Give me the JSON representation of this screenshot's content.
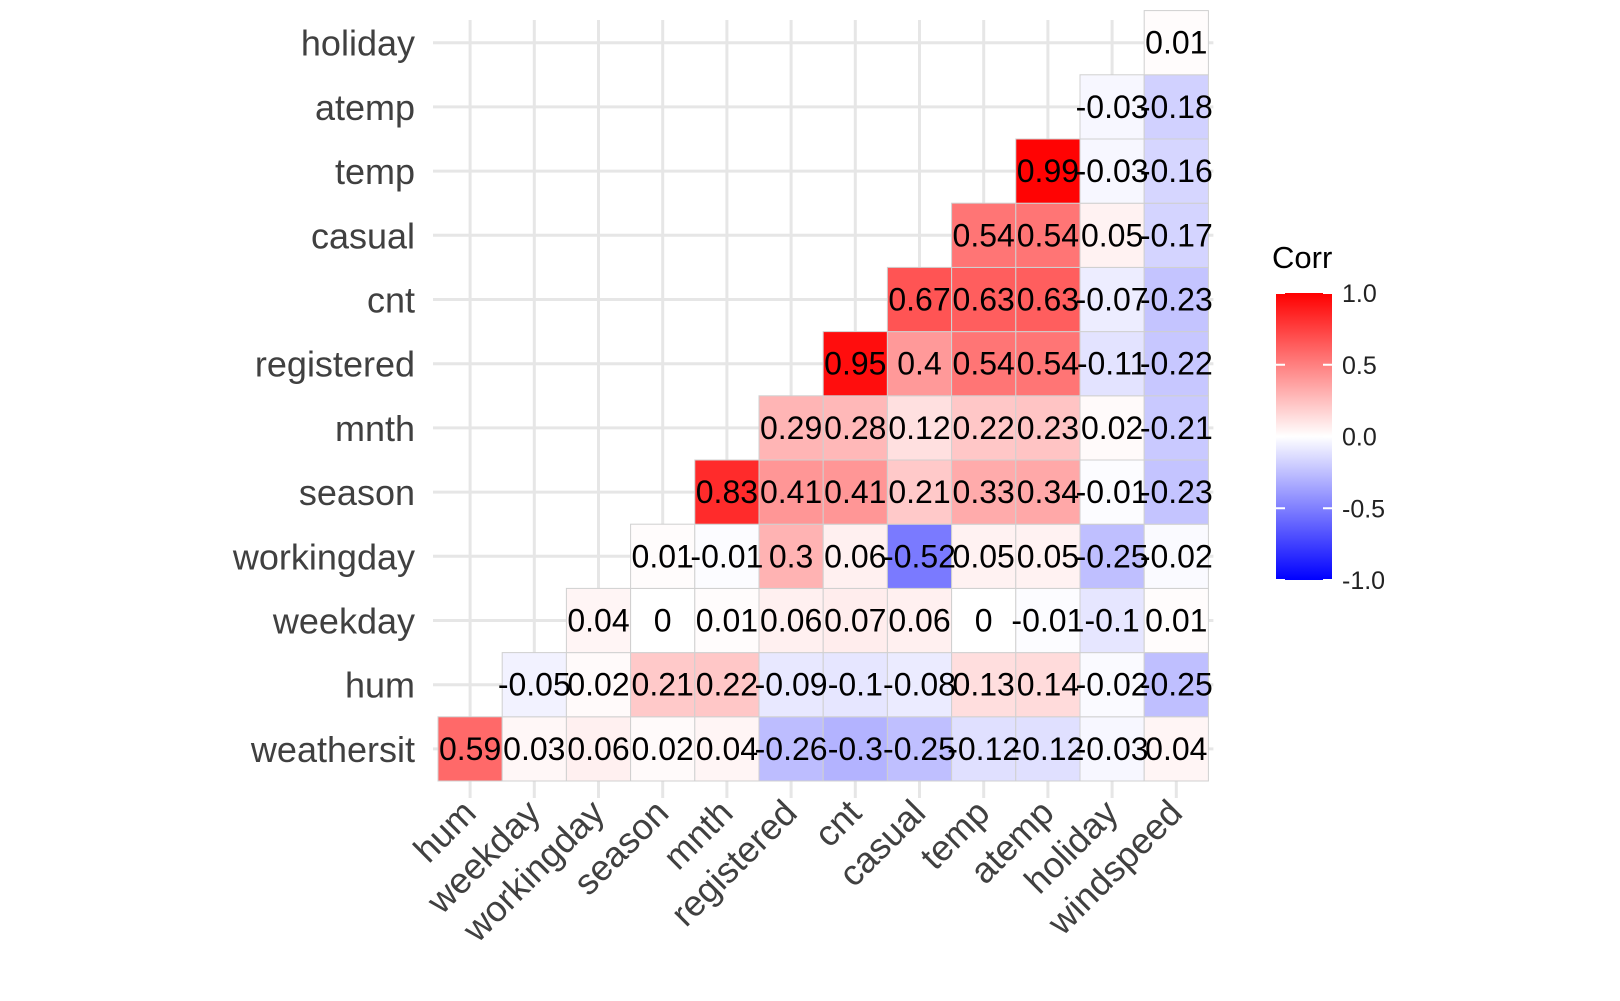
{
  "chart_data": {
    "type": "heatmap",
    "x_categories": [
      "hum",
      "weekday",
      "workingday",
      "season",
      "mnth",
      "registered",
      "cnt",
      "casual",
      "temp",
      "atemp",
      "holiday",
      "windspeed"
    ],
    "y_categories": [
      "weathersit",
      "hum",
      "weekday",
      "workingday",
      "season",
      "mnth",
      "registered",
      "cnt",
      "casual",
      "temp",
      "atemp",
      "holiday"
    ],
    "matrix": [
      [
        "0.59",
        "0.03",
        "0.06",
        "0.02",
        "0.04",
        "-0.26",
        "-0.3",
        "-0.25",
        "-0.12",
        "-0.12",
        "-0.03",
        "0.04"
      ],
      [
        null,
        "-0.05",
        "0.02",
        "0.21",
        "0.22",
        "-0.09",
        "-0.1",
        "-0.08",
        "0.13",
        "0.14",
        "-0.02",
        "-0.25"
      ],
      [
        null,
        null,
        "0.04",
        "0",
        "0.01",
        "0.06",
        "0.07",
        "0.06",
        "0",
        "-0.01",
        "-0.1",
        "0.01"
      ],
      [
        null,
        null,
        null,
        "0.01",
        "-0.01",
        "0.3",
        "0.06",
        "-0.52",
        "0.05",
        "0.05",
        "-0.25",
        "-0.02"
      ],
      [
        null,
        null,
        null,
        null,
        "0.83",
        "0.41",
        "0.41",
        "0.21",
        "0.33",
        "0.34",
        "-0.01",
        "-0.23"
      ],
      [
        null,
        null,
        null,
        null,
        null,
        "0.29",
        "0.28",
        "0.12",
        "0.22",
        "0.23",
        "0.02",
        "-0.21"
      ],
      [
        null,
        null,
        null,
        null,
        null,
        null,
        "0.95",
        "0.4",
        "0.54",
        "0.54",
        "-0.11",
        "-0.22"
      ],
      [
        null,
        null,
        null,
        null,
        null,
        null,
        null,
        "0.67",
        "0.63",
        "0.63",
        "-0.07",
        "-0.23"
      ],
      [
        null,
        null,
        null,
        null,
        null,
        null,
        null,
        null,
        "0.54",
        "0.54",
        "0.05",
        "-0.17"
      ],
      [
        null,
        null,
        null,
        null,
        null,
        null,
        null,
        null,
        null,
        "0.99",
        "-0.03",
        "-0.16"
      ],
      [
        null,
        null,
        null,
        null,
        null,
        null,
        null,
        null,
        null,
        null,
        "-0.03",
        "-0.18"
      ],
      [
        null,
        null,
        null,
        null,
        null,
        null,
        null,
        null,
        null,
        null,
        null,
        "0.01"
      ]
    ],
    "colorscale": {
      "low": "#0000ff",
      "mid": "#ffffff",
      "high": "#ff0000",
      "limits": [
        -1,
        1
      ]
    },
    "legend": {
      "title": "Corr",
      "ticks": [
        "1.0",
        "0.5",
        "0.0",
        "-0.5",
        "-1.0"
      ],
      "placement": "right"
    },
    "grid": true
  }
}
